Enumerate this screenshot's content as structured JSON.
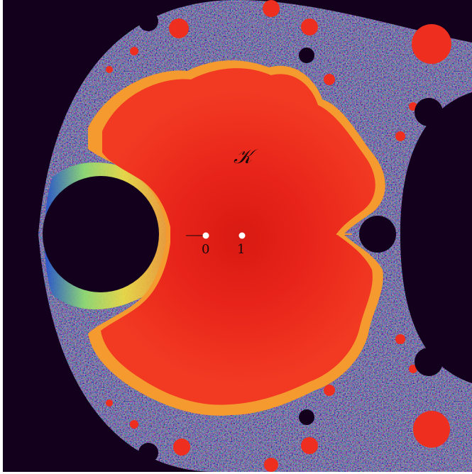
{
  "figure": {
    "set_label": "𝒦",
    "point_labels": [
      "0",
      "1"
    ]
  },
  "colors": {
    "background": "#12001c",
    "interior": "#ee2e1e",
    "interior_dark": "#d81a12",
    "edge_yellow": "#f0e040",
    "edge_green": "#8fe070",
    "edge_blue": "#2050d0",
    "marked_point": "#ffffff"
  }
}
